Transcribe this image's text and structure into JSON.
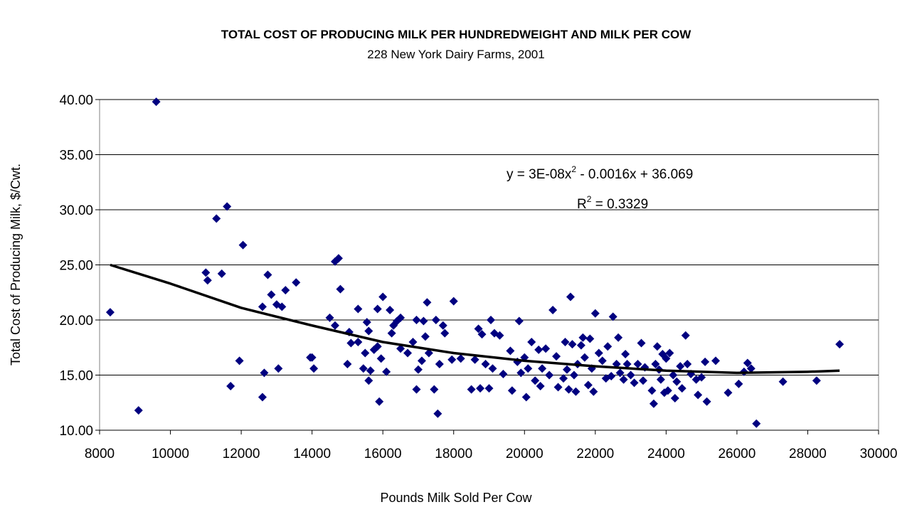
{
  "chart_data": {
    "type": "scatter",
    "title": "TOTAL COST OF PRODUCING MILK PER HUNDREDWEIGHT AND MILK PER COW",
    "subtitle": "228 New York Dairy Farms, 2001",
    "x_label": "Pounds Milk Sold Per Cow",
    "y_label": "Total Cost of Producing Milk, $/Cwt.",
    "equation": [
      "y = 3E-08x",
      "2",
      " - 0.0016x + 36.069"
    ],
    "r_squared": [
      "R",
      "2",
      " = 0.3329"
    ],
    "xlim": [
      8000,
      30000
    ],
    "xticks": [
      8000,
      10000,
      12000,
      14000,
      16000,
      18000,
      20000,
      22000,
      24000,
      26000,
      28000,
      30000
    ],
    "ylim": [
      10,
      40
    ],
    "yticks": [
      {
        "value": 10,
        "label": "10.00"
      },
      {
        "value": 15,
        "label": "15.00"
      },
      {
        "value": 20,
        "label": "20.00"
      },
      {
        "value": 25,
        "label": "25.00"
      },
      {
        "value": 30,
        "label": "30.00"
      },
      {
        "value": 35,
        "label": "35.00"
      },
      {
        "value": 40,
        "label": "40.00"
      }
    ],
    "grid": true,
    "color": "#000080",
    "trendline": {
      "color": "#000000",
      "x": [
        8300,
        10000,
        12000,
        14000,
        16000,
        18000,
        20000,
        22000,
        24000,
        26000,
        28000,
        28900
      ],
      "values": [
        25.0,
        23.3,
        21.1,
        19.5,
        18.0,
        17.0,
        16.3,
        15.8,
        15.4,
        15.2,
        15.3,
        15.4
      ]
    },
    "x": [
      8300,
      9100,
      9600,
      11000,
      11050,
      11300,
      11450,
      11600,
      11700,
      11950,
      12050,
      12600,
      12600,
      12650,
      12750,
      12850,
      13000,
      13050,
      13150,
      13250,
      13550,
      13950,
      14000,
      14050,
      14500,
      14650,
      14650,
      14750,
      14800,
      15000,
      15050,
      15100,
      15300,
      15300,
      15450,
      15500,
      15550,
      15600,
      15600,
      15650,
      15750,
      15850,
      15850,
      15900,
      15950,
      16000,
      16100,
      16200,
      16250,
      16300,
      16400,
      16500,
      16500,
      16700,
      16850,
      16950,
      16950,
      17000,
      17100,
      17150,
      17200,
      17250,
      17300,
      17450,
      17500,
      17550,
      17600,
      17700,
      17750,
      17950,
      18000,
      18200,
      18500,
      18600,
      18700,
      18750,
      18800,
      18900,
      19000,
      19050,
      19100,
      19150,
      19300,
      19400,
      19600,
      19650,
      19800,
      19850,
      19900,
      20000,
      20050,
      20100,
      20200,
      20300,
      20400,
      20450,
      20500,
      20600,
      20700,
      20800,
      20900,
      20950,
      21100,
      21150,
      21200,
      21250,
      21300,
      21350,
      21400,
      21450,
      21500,
      21600,
      21650,
      21700,
      21800,
      21850,
      21900,
      21950,
      22000,
      22100,
      22200,
      22300,
      22350,
      22450,
      22500,
      22600,
      22650,
      22700,
      22800,
      22850,
      22900,
      23000,
      23100,
      23200,
      23300,
      23350,
      23400,
      23600,
      23650,
      23700,
      23750,
      23800,
      23850,
      23900,
      23950,
      24000,
      24050,
      24100,
      24200,
      24250,
      24300,
      24400,
      24450,
      24550,
      24600,
      24700,
      24850,
      24900,
      25000,
      25100,
      25150,
      25400,
      25750,
      26050,
      26200,
      26300,
      26400,
      26550,
      27300,
      28250,
      28900
    ],
    "values": [
      20.7,
      11.8,
      39.8,
      24.3,
      23.6,
      29.2,
      24.2,
      30.3,
      14.0,
      16.3,
      26.8,
      21.2,
      13.0,
      15.2,
      24.1,
      22.3,
      21.4,
      15.6,
      21.2,
      22.7,
      23.4,
      16.6,
      16.6,
      15.6,
      20.2,
      19.5,
      25.3,
      25.6,
      22.8,
      16.0,
      18.9,
      17.9,
      21.0,
      18.0,
      15.6,
      17.0,
      19.8,
      19.0,
      14.5,
      15.4,
      17.3,
      17.6,
      21.0,
      12.6,
      16.5,
      22.1,
      15.3,
      20.9,
      18.8,
      19.5,
      19.9,
      20.2,
      17.4,
      17.0,
      18.0,
      13.7,
      20.0,
      15.5,
      16.3,
      19.9,
      18.5,
      21.6,
      17.0,
      13.7,
      20.0,
      11.5,
      16.0,
      19.5,
      18.8,
      16.4,
      21.7,
      16.5,
      13.7,
      16.4,
      19.2,
      13.8,
      18.7,
      16.0,
      13.8,
      20.0,
      15.6,
      18.8,
      18.6,
      15.1,
      17.2,
      13.6,
      16.2,
      19.9,
      15.2,
      16.6,
      13.0,
      15.6,
      18.0,
      14.5,
      17.3,
      14.0,
      15.6,
      17.4,
      15.0,
      20.9,
      16.7,
      13.9,
      14.7,
      18.0,
      15.5,
      13.7,
      22.1,
      17.8,
      15.0,
      13.5,
      16.0,
      17.7,
      18.4,
      16.6,
      14.1,
      18.3,
      15.6,
      13.5,
      20.6,
      17.0,
      16.3,
      14.7,
      17.6,
      14.9,
      20.3,
      16.0,
      18.4,
      15.2,
      14.6,
      16.9,
      16.0,
      15.0,
      14.3,
      16.0,
      17.9,
      14.5,
      15.7,
      13.6,
      12.4,
      16.0,
      17.6,
      15.5,
      14.6,
      16.9,
      13.4,
      16.5,
      13.6,
      17.0,
      15.0,
      12.9,
      14.4,
      15.8,
      13.8,
      18.6,
      16.0,
      15.1,
      14.6,
      13.2,
      14.8,
      16.2,
      12.6,
      16.3,
      13.4,
      14.2,
      15.3,
      16.1,
      15.6,
      10.6,
      14.4,
      14.5,
      17.8
    ]
  }
}
